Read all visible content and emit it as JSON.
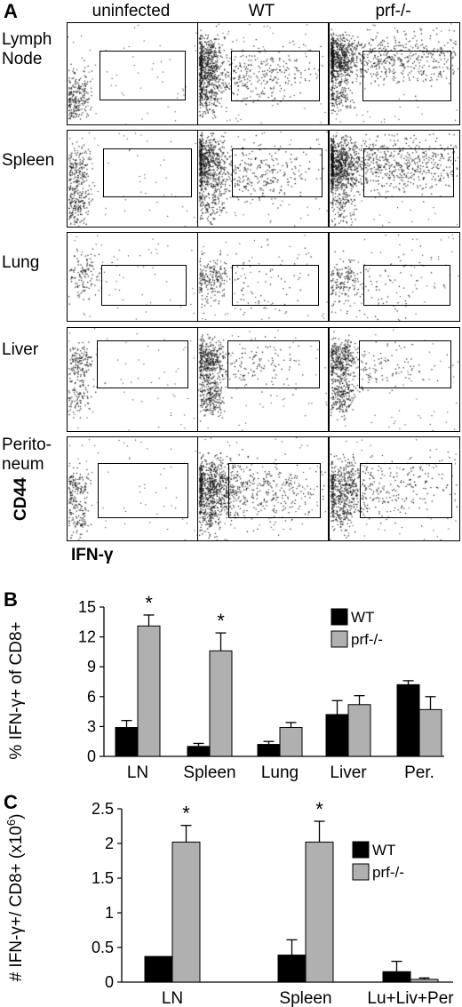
{
  "panel_a": {
    "letter": "A",
    "columns": [
      "uninfected",
      "WT",
      "prf-/-"
    ],
    "rows": [
      "Lymph\nNode",
      "Spleen",
      "Lung",
      "Liver",
      "Perito-\nneum"
    ],
    "y_axis_label": "CD44",
    "x_axis_label": "IFN-γ"
  },
  "panel_b": {
    "letter": "B"
  },
  "panel_c": {
    "letter": "C"
  },
  "chart_data": [
    {
      "type": "bar",
      "categories": [
        "LN",
        "Spleen",
        "Lung",
        "Liver",
        "Per."
      ],
      "series": [
        {
          "name": "WT",
          "color": "#000000",
          "values": [
            2.9,
            1.0,
            1.2,
            4.2,
            7.2
          ],
          "errors": [
            0.7,
            0.3,
            0.3,
            1.4,
            0.4
          ]
        },
        {
          "name": "prf-/-",
          "color": "#b0b0b0",
          "values": [
            13.1,
            10.6,
            2.9,
            5.2,
            4.7
          ],
          "errors": [
            1.1,
            1.8,
            0.5,
            0.9,
            1.3
          ]
        }
      ],
      "ylabel": "% IFN-γ+ of CD8+",
      "yticks": [
        "0",
        "3",
        "6",
        "9",
        "12",
        "15"
      ],
      "ylim": [
        0,
        15
      ],
      "significance": [
        "*",
        "*",
        "",
        "",
        ""
      ],
      "legend_position": "top-right"
    },
    {
      "type": "bar",
      "categories": [
        "LN",
        "Spleen",
        "Lu+Liv+Per"
      ],
      "series": [
        {
          "name": "WT",
          "color": "#000000",
          "values": [
            0.37,
            0.39,
            0.15
          ],
          "errors": [
            0.0,
            0.22,
            0.15
          ]
        },
        {
          "name": "prf-/-",
          "color": "#b0b0b0",
          "values": [
            2.02,
            2.02,
            0.04
          ],
          "errors": [
            0.24,
            0.3,
            0.02
          ]
        }
      ],
      "ylabel_prefix": "# IFN-γ+/ CD8+ (x10",
      "ylabel_exp": "6",
      "ylabel_suffix": ")",
      "yticks": [
        "0",
        "0.5",
        "1",
        "1.5",
        "2",
        "2.5"
      ],
      "ylim": [
        0,
        2.5
      ],
      "significance": [
        "*",
        "*",
        ""
      ],
      "legend_position": "top-right"
    }
  ]
}
